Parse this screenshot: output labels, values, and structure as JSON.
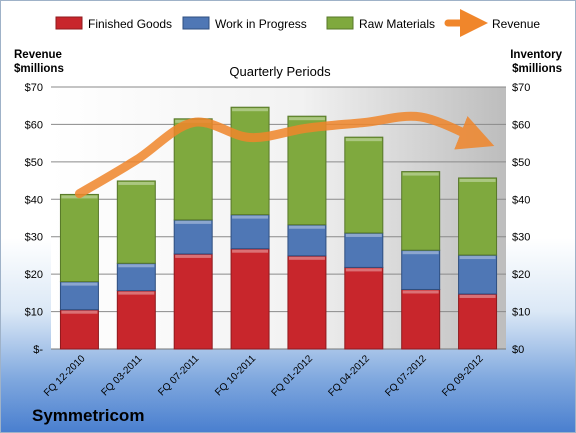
{
  "company": "Symmetricom",
  "chart_data": {
    "type": "bar",
    "stacked": true,
    "title": "Quarterly Periods",
    "ylabel_left": "Revenue\n$millions",
    "ylabel_right": "Inventory\n$millions",
    "ylim": [
      0,
      70
    ],
    "yticks_left": [
      "$-",
      "$10",
      "$20",
      "$30",
      "$40",
      "$50",
      "$60",
      "$70"
    ],
    "yticks_right": [
      "$0",
      "$10",
      "$20",
      "$30",
      "$40",
      "$50",
      "$60",
      "$70"
    ],
    "grid": true,
    "legend": "top",
    "categories": [
      "FQ 12-2010",
      "FQ 03-2011",
      "FQ 07-2011",
      "FQ 10-2011",
      "FQ 01-2012",
      "FQ 04-2012",
      "FQ 07-2012",
      "FQ 09-2012"
    ],
    "series": [
      {
        "name": "Finished Goods",
        "color": "#c8262c",
        "values": [
          10.5,
          15.6,
          25.4,
          26.8,
          24.9,
          21.8,
          15.9,
          14.7
        ]
      },
      {
        "name": "Work in Progress",
        "color": "#4f77b5",
        "values": [
          7.5,
          7.3,
          9.1,
          9.1,
          8.3,
          9.2,
          10.5,
          10.4
        ]
      },
      {
        "name": "Raw Materials",
        "color": "#7fa93e",
        "values": [
          23.3,
          22.0,
          27.0,
          28.7,
          29.0,
          25.6,
          21.0,
          20.6
        ]
      }
    ],
    "line_series": {
      "name": "Revenue",
      "color": "#f0862b",
      "values": [
        41.5,
        50.5,
        60.5,
        56.5,
        59.0,
        60.5,
        62.0,
        56.0
      ]
    }
  }
}
